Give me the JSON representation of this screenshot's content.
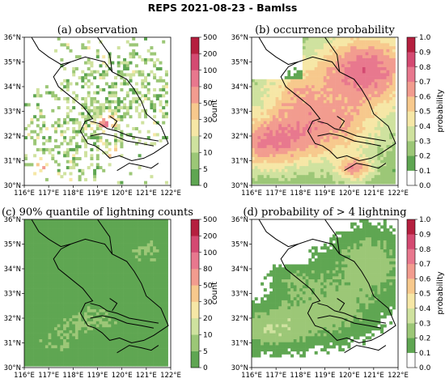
{
  "figure_title": "REPS 2021-08-23 - Bamlss",
  "colors": {
    "count_scale": [
      "#5fa652",
      "#9cc777",
      "#cfe29f",
      "#f6e7a6",
      "#f7c98d",
      "#f29c8f",
      "#e8788e",
      "#d44a72",
      "#b5203f"
    ],
    "probability_scale": [
      "#ffffff",
      "#5fa652",
      "#9cc777",
      "#cfe29f",
      "#f6e7a6",
      "#f7c98d",
      "#f29c8f",
      "#e8788e",
      "#d44a72",
      "#b5203f"
    ],
    "boundary": "#000000"
  },
  "panels": [
    {
      "title": "(a) observation",
      "colorbar_label": "count",
      "colorbar_ticks": [
        "500",
        "200",
        "100",
        "80",
        "50",
        "30",
        "20",
        "10",
        "5",
        "0"
      ],
      "x_ticks": [
        "116°E",
        "117°E",
        "118°E",
        "119°E",
        "120°E",
        "121°E",
        "122°E"
      ],
      "y_ticks": [
        "36°N",
        "35°N",
        "34°N",
        "33°N",
        "32°N",
        "31°N",
        "30°N"
      ]
    },
    {
      "title": "(b) occurrence probability",
      "colorbar_label": "probability",
      "colorbar_ticks": [
        "1.0",
        "0.9",
        "0.8",
        "0.7",
        "0.6",
        "0.5",
        "0.4",
        "0.3",
        "0.2",
        "0.1",
        "0.0"
      ],
      "x_ticks": [
        "116°E",
        "117°E",
        "118°E",
        "119°E",
        "120°E",
        "121°E",
        "122°E"
      ],
      "y_ticks": [
        "36°N",
        "35°N",
        "34°N",
        "33°N",
        "32°N",
        "31°N",
        "30°N"
      ]
    },
    {
      "title": "(c) 90% quantile of lightning counts",
      "colorbar_label": "count",
      "colorbar_ticks": [
        "500",
        "200",
        "100",
        "80",
        "50",
        "30",
        "20",
        "10",
        "5",
        "0"
      ],
      "x_ticks": [
        "116°E",
        "117°E",
        "118°E",
        "119°E",
        "120°E",
        "121°E",
        "122°E"
      ],
      "y_ticks": [
        "36°N",
        "35°N",
        "34°N",
        "33°N",
        "32°N",
        "31°N",
        "30°N"
      ]
    },
    {
      "title": "(d) probability of > 4 lightning",
      "colorbar_label": "probability",
      "colorbar_ticks": [
        "1.0",
        "0.9",
        "0.8",
        "0.7",
        "0.6",
        "0.5",
        "0.4",
        "0.3",
        "0.2",
        "0.1",
        "0.0"
      ],
      "x_ticks": [
        "116°E",
        "117°E",
        "118°E",
        "119°E",
        "120°E",
        "121°E",
        "122°E"
      ],
      "y_ticks": [
        "36°N",
        "35°N",
        "34°N",
        "33°N",
        "32°N",
        "31°N",
        "30°N"
      ]
    }
  ]
}
